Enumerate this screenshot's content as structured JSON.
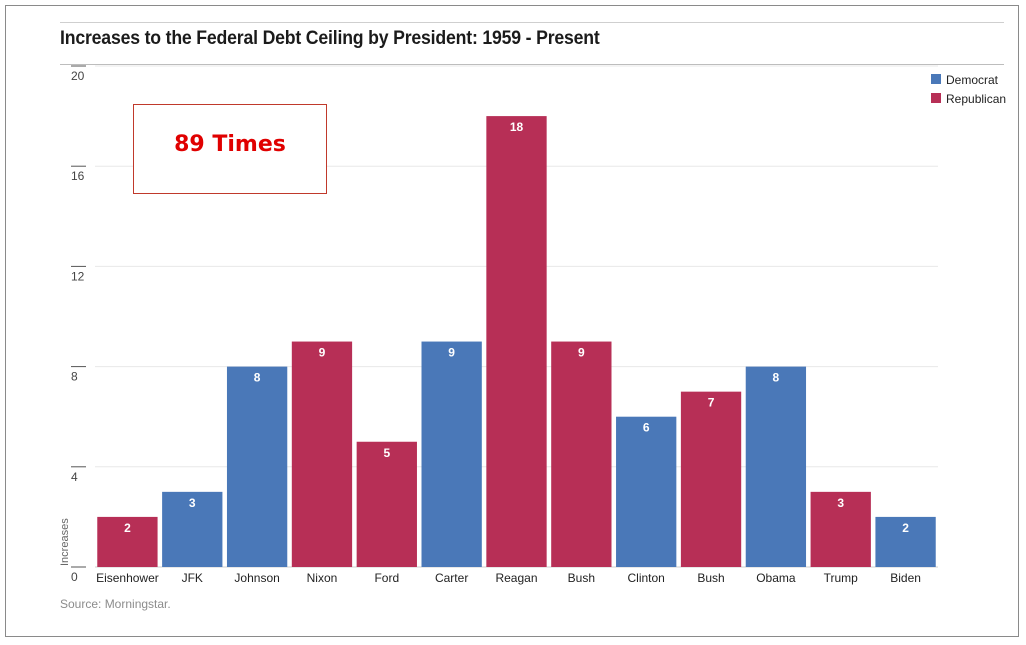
{
  "chart_data": {
    "type": "bar",
    "title": "Increases to the Federal Debt Ceiling by President: 1959 - Present",
    "ylabel": "Increases",
    "xlabel": "",
    "ylim": [
      0,
      20
    ],
    "yticks": [
      0,
      4,
      8,
      12,
      16,
      20
    ],
    "categories": [
      "Eisenhower",
      "JFK",
      "Johnson",
      "Nixon",
      "Ford",
      "Carter",
      "Reagan",
      "Bush",
      "Clinton",
      "Bush",
      "Obama",
      "Trump",
      "Biden"
    ],
    "values": [
      2,
      3,
      8,
      9,
      5,
      9,
      18,
      9,
      6,
      7,
      8,
      3,
      2
    ],
    "party": [
      "Republican",
      "Democrat",
      "Democrat",
      "Republican",
      "Republican",
      "Democrat",
      "Republican",
      "Republican",
      "Democrat",
      "Republican",
      "Democrat",
      "Republican",
      "Democrat"
    ],
    "legend": [
      {
        "name": "Democrat",
        "color": "#4a78b8"
      },
      {
        "name": "Republican",
        "color": "#b72f56"
      }
    ],
    "legend_position": "top-right",
    "grid": true,
    "annotation": "89 Times"
  },
  "source": "Source: Morningstar."
}
